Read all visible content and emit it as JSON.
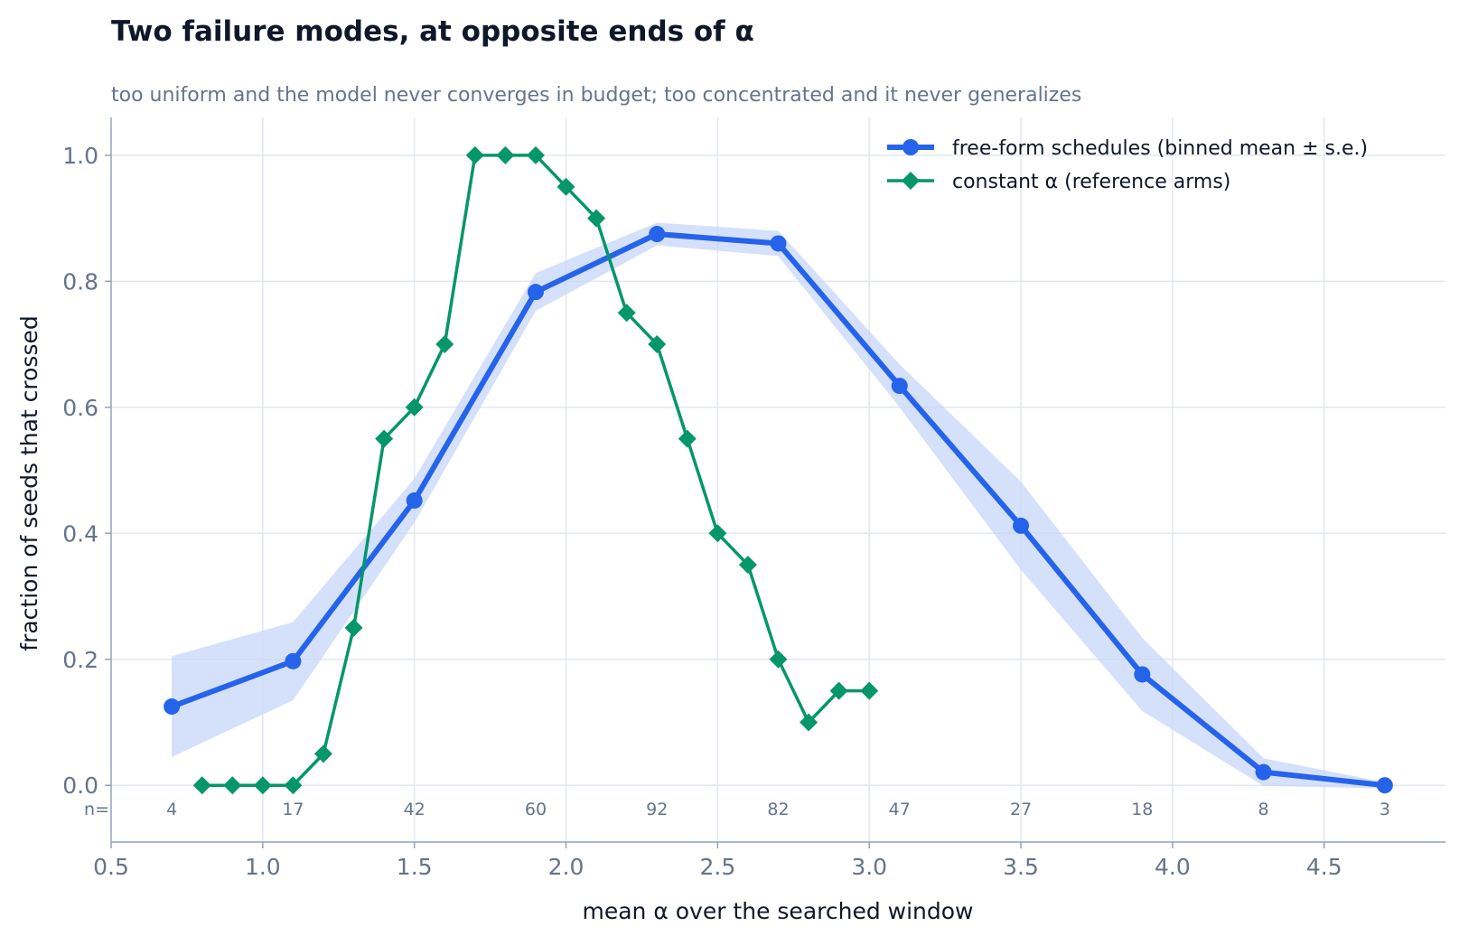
{
  "chart_data": {
    "type": "line",
    "title": "Two failure modes, at opposite ends of α",
    "subtitle": "too uniform and the model never converges in budget; too concentrated and it never generalizes",
    "xlabel": "mean α over the searched window",
    "ylabel": "fraction of seeds that crossed",
    "xlim": [
      0.5,
      4.9
    ],
    "ylim": [
      -0.09,
      1.06
    ],
    "xticks": [
      0.5,
      1.0,
      1.5,
      2.0,
      2.5,
      3.0,
      3.5,
      4.0,
      4.5
    ],
    "xtick_labels": [
      "0.5",
      "1.0",
      "1.5",
      "2.0",
      "2.5",
      "3.0",
      "3.5",
      "4.0",
      "4.5"
    ],
    "yticks": [
      0.0,
      0.2,
      0.4,
      0.6,
      0.8,
      1.0
    ],
    "ytick_labels": [
      "0.0",
      "0.2",
      "0.4",
      "0.6",
      "0.8",
      "1.0"
    ],
    "grid": true,
    "legend_position": "top-right",
    "n_prefix": "n=",
    "series": [
      {
        "name": "free-form schedules (binned mean ± s.e.)",
        "color": "#2563eb",
        "band_color": "#c7d7f8",
        "marker": "circle",
        "x": [
          0.7,
          1.1,
          1.5,
          1.9,
          2.3,
          2.7,
          3.1,
          3.5,
          3.9,
          4.3,
          4.7
        ],
        "y": [
          0.125,
          0.197,
          0.452,
          0.783,
          0.875,
          0.86,
          0.634,
          0.412,
          0.176,
          0.021,
          0.0
        ],
        "se": [
          0.08,
          0.062,
          0.035,
          0.03,
          0.018,
          0.02,
          0.034,
          0.07,
          0.058,
          0.022,
          0.005
        ],
        "n": [
          "4",
          "17",
          "42",
          "60",
          "92",
          "82",
          "47",
          "27",
          "18",
          "8",
          "3"
        ]
      },
      {
        "name": "constant α (reference arms)",
        "color": "#059669",
        "marker": "diamond",
        "x": [
          0.8,
          0.9,
          1.0,
          1.1,
          1.2,
          1.3,
          1.4,
          1.5,
          1.6,
          1.7,
          1.8,
          1.9,
          2.0,
          2.1,
          2.2,
          2.3,
          2.4,
          2.5,
          2.6,
          2.7,
          2.8,
          2.9,
          3.0
        ],
        "y": [
          0.0,
          0.0,
          0.0,
          0.0,
          0.05,
          0.25,
          0.55,
          0.6,
          0.7,
          1.0,
          1.0,
          1.0,
          0.95,
          0.9,
          0.75,
          0.7,
          0.55,
          0.4,
          0.35,
          0.2,
          0.1,
          0.15,
          0.15
        ]
      }
    ]
  }
}
